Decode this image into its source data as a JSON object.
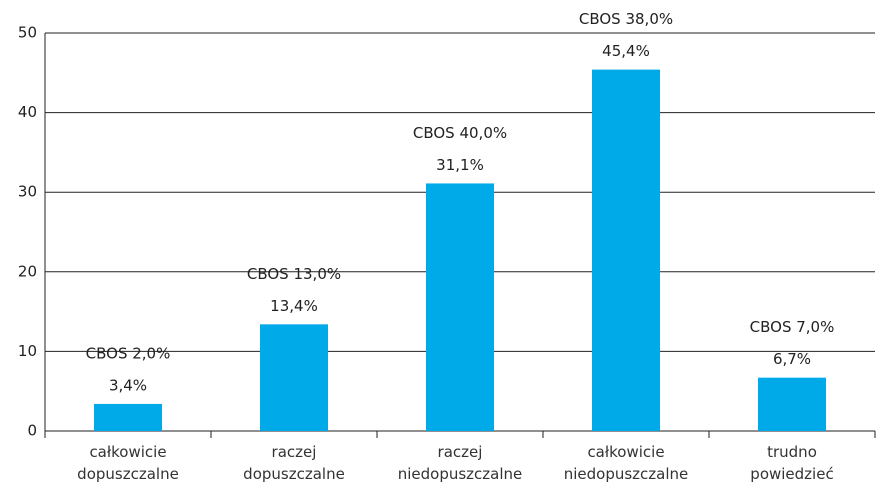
{
  "chart_data": {
    "type": "bar",
    "categories": [
      "całkowicie\ndopuszczalne",
      "raczej\ndopuszczalne",
      "raczej\nniedopuszczalne",
      "całkowicie\nniedopuszczalne",
      "trudno\npowiedzieć"
    ],
    "values": [
      3.4,
      13.4,
      31.1,
      45.4,
      6.7
    ],
    "value_labels": [
      "3,4%",
      "13,4%",
      "31,1%",
      "45,4%",
      "6,7%"
    ],
    "annotations": [
      "CBOS 2,0%",
      "CBOS 13,0%",
      "CBOS 40,0%",
      "CBOS 38,0%",
      "CBOS 7,0%"
    ],
    "color": "#00a9e8",
    "ylim": [
      0,
      50
    ],
    "yticks": [
      0,
      10,
      20,
      30,
      40,
      50
    ],
    "grid": true
  }
}
